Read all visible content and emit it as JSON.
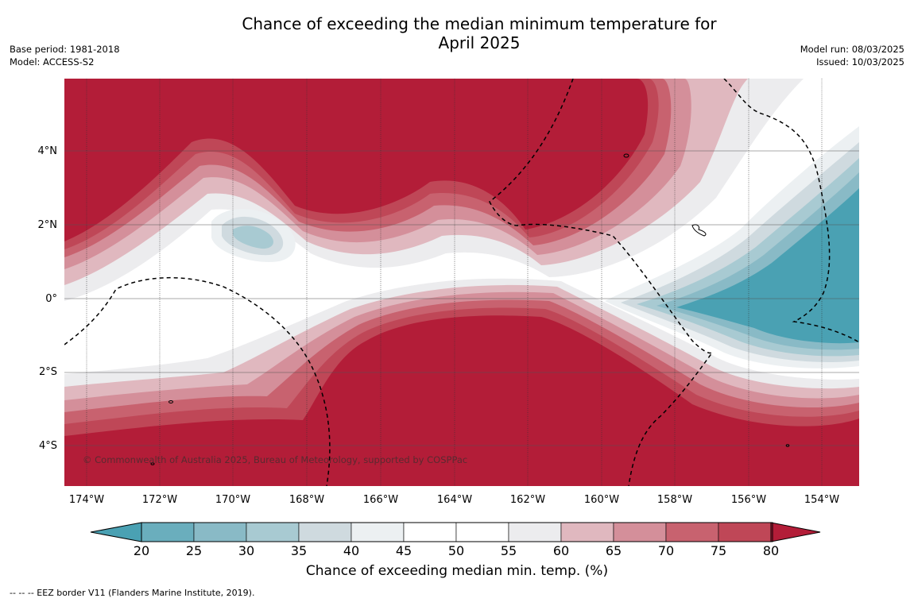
{
  "title_line1": "Chance of exceeding the median minimum temperature for",
  "title_line2": "April 2025",
  "meta_left": [
    "Base period: 1981-2018",
    "Model: ACCESS-S2"
  ],
  "meta_right": [
    "Model run: 08/03/2025",
    "Issued: 10/03/2025"
  ],
  "latitude_labels": [
    "4°N",
    "2°N",
    "0°",
    "2°S",
    "4°S"
  ],
  "longitude_labels": [
    "174°W",
    "172°W",
    "170°W",
    "168°W",
    "166°W",
    "164°W",
    "162°W",
    "160°W",
    "158°W",
    "156°W",
    "154°W"
  ],
  "copyright": "© Commonwealth of Australia 2025, Bureau of Meteorology, supported by COSPPac",
  "colorbar": {
    "ticks": [
      "20",
      "25",
      "30",
      "35",
      "40",
      "45",
      "50",
      "55",
      "60",
      "65",
      "70",
      "75",
      "80"
    ],
    "colors": [
      "#4aa1b3",
      "#6aaebd",
      "#89bac6",
      "#a8cad2",
      "#cfdadf",
      "#ecf0f2",
      "#ffffff",
      "#ffffff",
      "#ececee",
      "#e0b8bf",
      "#d48f9a",
      "#c8626f",
      "#bf4757",
      "#b31d38"
    ],
    "title": "Chance of exceeding median min. temp. (%)"
  },
  "footnote": "--  --  -- EEZ border V11 (Flanders Marine Institute, 2019)."
}
